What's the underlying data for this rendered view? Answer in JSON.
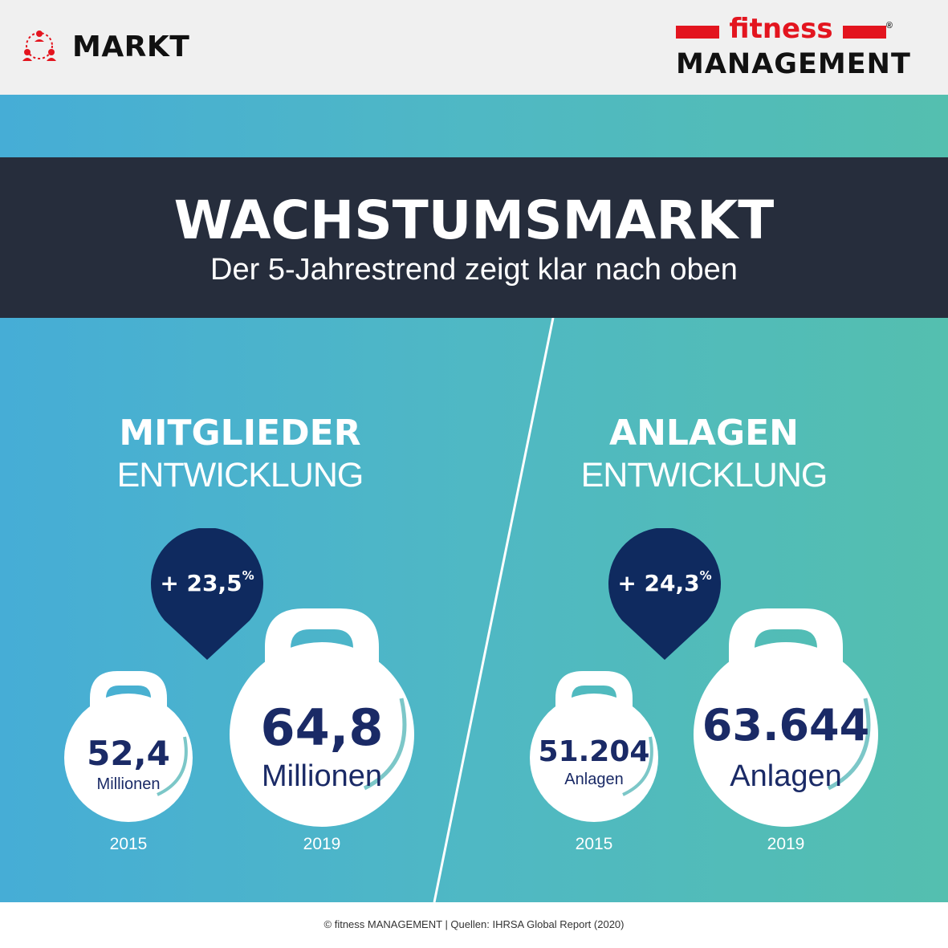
{
  "header": {
    "section_icon": "people-network-icon",
    "section_label": "MARKT",
    "logo": {
      "top": "fitness",
      "bottom": "MANAGEMENT",
      "registered": "®"
    }
  },
  "banner": {
    "title": "WACHSTUMSMARKT",
    "subtitle": "Der 5-Jahrestrend zeigt klar nach oben"
  },
  "sections": [
    {
      "heading_bold": "MITGLIEDER",
      "heading_light": "ENTWICKLUNG",
      "growth": "+ 23,5",
      "growth_unit": "%",
      "items": [
        {
          "value": "52,4",
          "unit": "Millionen",
          "year": "2015"
        },
        {
          "value": "64,8",
          "unit": "Millionen",
          "year": "2019"
        }
      ]
    },
    {
      "heading_bold": "ANLAGEN",
      "heading_light": "ENTWICKLUNG",
      "growth": "+ 24,3",
      "growth_unit": "%",
      "items": [
        {
          "value": "51.204",
          "unit": "Anlagen",
          "year": "2015"
        },
        {
          "value": "63.644",
          "unit": "Anlagen",
          "year": "2019"
        }
      ]
    }
  ],
  "footer": {
    "text": "© fitness MANAGEMENT  |  Quellen: IHRSA Global Report (2020)"
  },
  "colors": {
    "accent_red": "#e3151f",
    "navy": "#0f2a5f",
    "banner": "#262d3c",
    "value_text": "#1a2a66"
  }
}
